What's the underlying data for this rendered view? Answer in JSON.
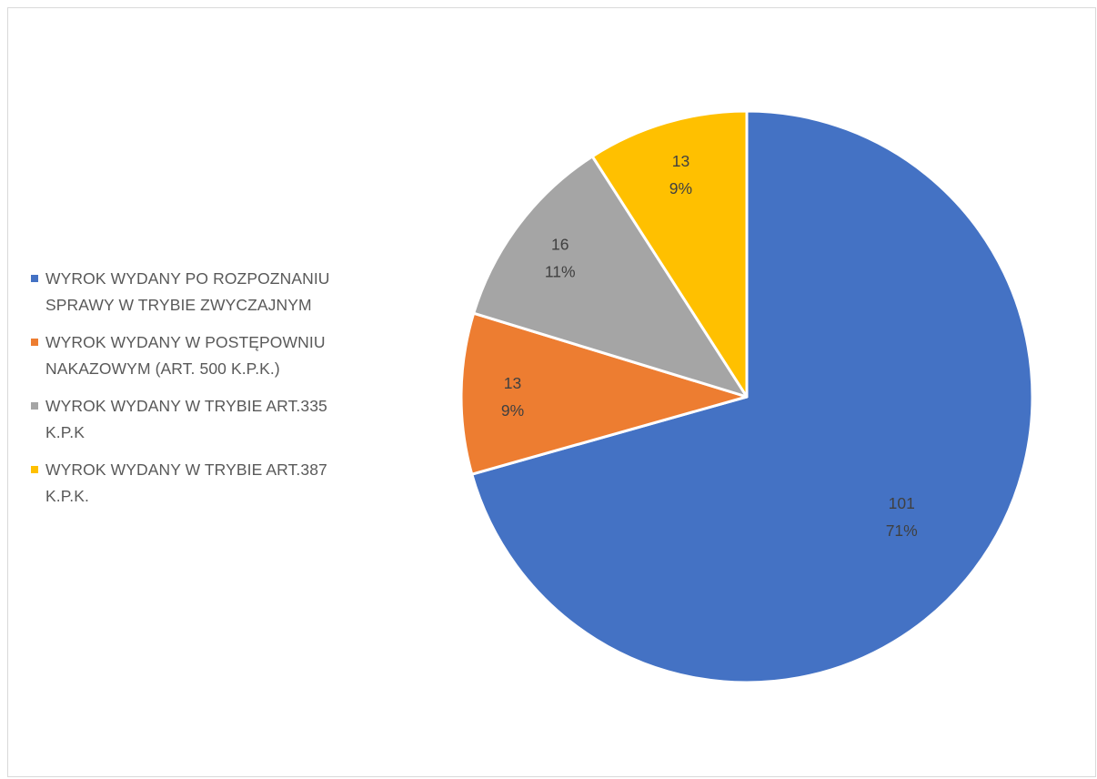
{
  "chart_data": {
    "type": "pie",
    "title": "",
    "legend_position": "left",
    "slices": [
      {
        "label": "WYROK WYDANY PO ROZPOZNANIU SPRAWY W TRYBIE ZWYCZAJNYM",
        "label_lines": [
          "WYROK WYDANY PO ROZPOZNANIU",
          "SPRAWY W TRYBIE ZWYCZAJNYM"
        ],
        "value": 101,
        "percent_label": "71%",
        "color": "#4472C4"
      },
      {
        "label": "WYROK WYDANY W POSTĘPOWNIU NAKAZOWYM (ART. 500 K.P.K.)",
        "label_lines": [
          "WYROK WYDANY W POSTĘPOWNIU",
          "NAKAZOWYM (ART. 500 K.P.K.)"
        ],
        "value": 13,
        "percent_label": "9%",
        "color": "#ED7D31"
      },
      {
        "label": "WYROK WYDANY W TRYBIE ART.335 K.P.K",
        "label_lines": [
          "WYROK WYDANY W TRYBIE ART.335",
          "K.P.K"
        ],
        "value": 16,
        "percent_label": "11%",
        "color": "#A5A5A5"
      },
      {
        "label": "WYROK WYDANY W TRYBIE ART.387 K.P.K.",
        "label_lines": [
          "WYROK WYDANY W TRYBIE ART.387",
          "K.P.K."
        ],
        "value": 13,
        "percent_label": "9%",
        "color": "#FFC000"
      }
    ]
  }
}
